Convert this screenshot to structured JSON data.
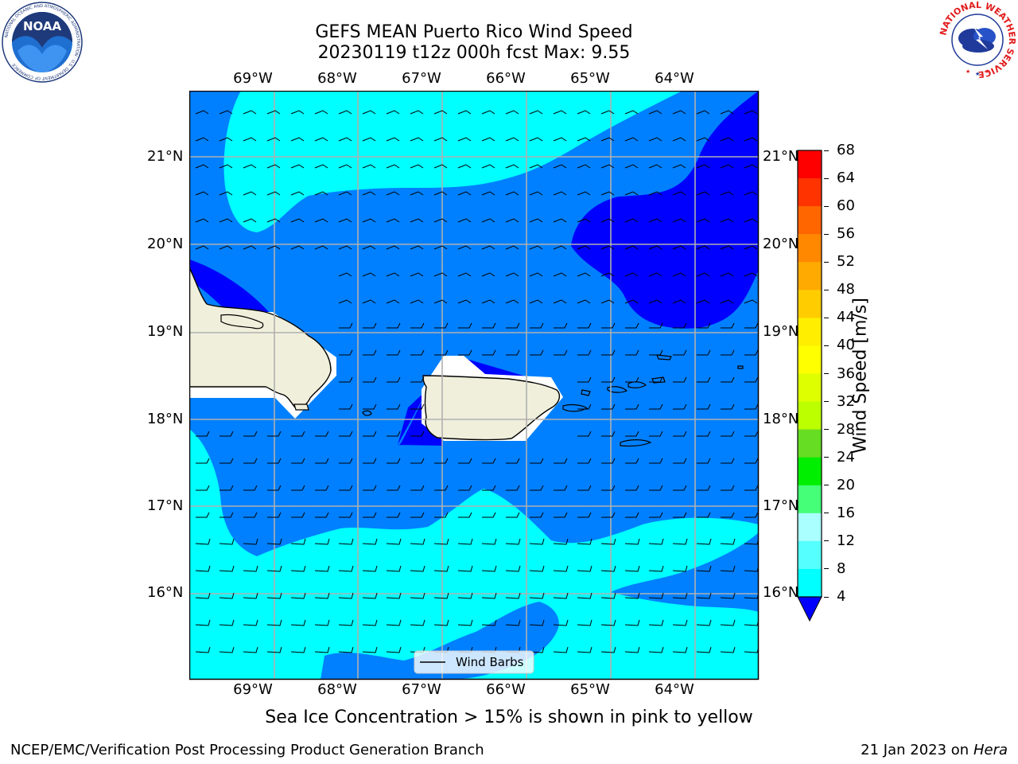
{
  "title": {
    "line1": "GEFS MEAN Puerto Rico Wind Speed",
    "line2": "20230119 t12z 000h fcst   Max: 9.55"
  },
  "map": {
    "lon_ticks": [
      "69°W",
      "68°W",
      "67°W",
      "66°W",
      "65°W",
      "64°W"
    ],
    "lat_ticks": [
      "21°N",
      "20°N",
      "19°N",
      "18°N",
      "17°N",
      "16°N"
    ],
    "legend_label": "Wind Barbs",
    "colors": {
      "band_4_8": "#0080ff",
      "band_8_12": "#00ffff",
      "band_below_4": "#0000ff",
      "land": "#efefdc",
      "grid": "#b0b0b0"
    }
  },
  "colorbar": {
    "label": "Wind Speed [m/s]",
    "ticks": [
      "68",
      "64",
      "60",
      "56",
      "52",
      "48",
      "44",
      "40",
      "36",
      "32",
      "28",
      "24",
      "20",
      "16",
      "12",
      "8",
      "4"
    ],
    "colors": [
      "#ff0000",
      "#ff3300",
      "#ff6600",
      "#ff8800",
      "#ffaa00",
      "#ffcc00",
      "#ffee00",
      "#ffff00",
      "#ddff00",
      "#bbff00",
      "#66dd22",
      "#00ee00",
      "#44ff77",
      "#aaffff",
      "#55ffff",
      "#00ffff",
      "#0080ff"
    ],
    "under_color": "#0000ff"
  },
  "caption": "Sea Ice Concentration > 15% is shown in pink to yellow",
  "footer": {
    "left": "NCEP/EMC/Verification Post Processing Product Generation Branch",
    "right_prefix": "21 Jan 2023 on ",
    "right_host": "Hera"
  },
  "logos": {
    "noaa_text": "NOAA",
    "noaa_ring": "NATIONAL OCEANIC AND ATMOSPHERIC ADMINISTRATION · U.S. DEPARTMENT OF COMMERCE",
    "nws_ring": "NATIONAL WEATHER SERVICE"
  }
}
